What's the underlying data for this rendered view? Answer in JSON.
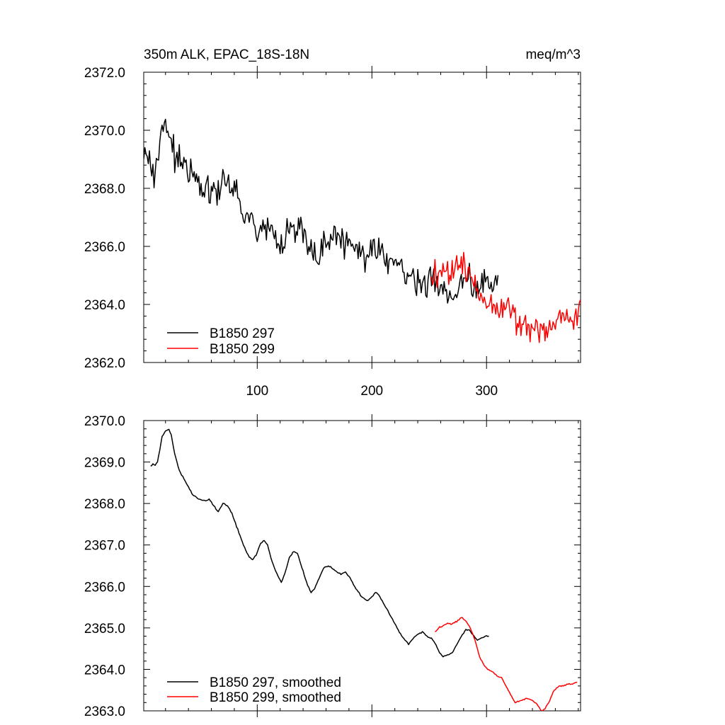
{
  "header": {
    "title": "350m ALK, EPAC_18S-18N",
    "units": "meq/m^3"
  },
  "chart_data": [
    {
      "type": "line",
      "panel": "top",
      "title": "350m ALK, EPAC_18S-18N",
      "units_label": "meq/m^3",
      "xlim": [
        1,
        382
      ],
      "ylim": [
        2362.0,
        2372.0
      ],
      "x_tick_labels": [
        {
          "value": 100,
          "label": "100"
        },
        {
          "value": 200,
          "label": "200"
        },
        {
          "value": 300,
          "label": "300"
        }
      ],
      "y_tick_labels": [
        {
          "value": 2372.0,
          "label": "2372.0"
        },
        {
          "value": 2370.0,
          "label": "2370.0"
        },
        {
          "value": 2368.0,
          "label": "2368.0"
        },
        {
          "value": 2366.0,
          "label": "2366.0"
        },
        {
          "value": 2364.0,
          "label": "2364.0"
        },
        {
          "value": 2362.0,
          "label": "2362.0"
        }
      ],
      "legend": {
        "position": "bottom-left",
        "entries": [
          "B1850 297",
          "B1850 299"
        ]
      },
      "series": [
        {
          "name": "B1850 297",
          "color": "#000000",
          "noise": 0.5,
          "seed": 297,
          "points": [
            [
              1,
              2369.3
            ],
            [
              5,
              2369.1
            ],
            [
              10,
              2368.6
            ],
            [
              14,
              2369.4
            ],
            [
              18,
              2370.2
            ],
            [
              21,
              2369.9
            ],
            [
              26,
              2369.4
            ],
            [
              30,
              2369.0
            ],
            [
              38,
              2368.7
            ],
            [
              45,
              2368.3
            ],
            [
              55,
              2368.1
            ],
            [
              60,
              2368.0
            ],
            [
              66,
              2367.9
            ],
            [
              72,
              2368.2
            ],
            [
              80,
              2367.9
            ],
            [
              88,
              2367.2
            ],
            [
              95,
              2366.9
            ],
            [
              103,
              2366.6
            ],
            [
              112,
              2366.8
            ],
            [
              120,
              2366.0
            ],
            [
              130,
              2366.8
            ],
            [
              140,
              2366.4
            ],
            [
              150,
              2365.6
            ],
            [
              160,
              2366.1
            ],
            [
              170,
              2366.3
            ],
            [
              180,
              2366.1
            ],
            [
              190,
              2365.6
            ],
            [
              200,
              2365.9
            ],
            [
              210,
              2365.6
            ],
            [
              218,
              2365.5
            ],
            [
              228,
              2365.2
            ],
            [
              238,
              2364.6
            ],
            [
              245,
              2364.8
            ],
            [
              253,
              2364.9
            ],
            [
              260,
              2364.4
            ],
            [
              270,
              2364.3
            ],
            [
              278,
              2364.8
            ],
            [
              286,
              2364.9
            ],
            [
              292,
              2364.5
            ],
            [
              300,
              2364.8
            ],
            [
              310,
              2364.8
            ]
          ]
        },
        {
          "name": "B1850 299",
          "color": "#ff0000",
          "noise": 0.5,
          "seed": 299,
          "points": [
            [
              251,
              2364.9
            ],
            [
              258,
              2365.1
            ],
            [
              265,
              2365.1
            ],
            [
              272,
              2365.2
            ],
            [
              278,
              2365.3
            ],
            [
              284,
              2365.0
            ],
            [
              290,
              2364.7
            ],
            [
              296,
              2364.3
            ],
            [
              303,
              2364.0
            ],
            [
              310,
              2363.8
            ],
            [
              318,
              2363.9
            ],
            [
              325,
              2363.6
            ],
            [
              333,
              2363.3
            ],
            [
              340,
              2363.2
            ],
            [
              347,
              2363.2
            ],
            [
              353,
              2363.0
            ],
            [
              359,
              2363.2
            ],
            [
              365,
              2363.6
            ],
            [
              372,
              2363.6
            ],
            [
              378,
              2363.6
            ],
            [
              382,
              2363.7
            ]
          ]
        }
      ]
    },
    {
      "type": "line",
      "panel": "bottom",
      "xlim": [
        1,
        382
      ],
      "ylim": [
        2363.0,
        2370.0
      ],
      "y_tick_labels": [
        {
          "value": 2370.0,
          "label": "2370.0"
        },
        {
          "value": 2369.0,
          "label": "2369.0"
        },
        {
          "value": 2368.0,
          "label": "2368.0"
        },
        {
          "value": 2367.0,
          "label": "2367.0"
        },
        {
          "value": 2366.0,
          "label": "2366.0"
        },
        {
          "value": 2365.0,
          "label": "2365.0"
        },
        {
          "value": 2364.0,
          "label": "2364.0"
        },
        {
          "value": 2363.0,
          "label": "2363.0"
        }
      ],
      "legend": {
        "position": "bottom-left",
        "entries": [
          "B1850 297, smoothed",
          "B1850 299, smoothed"
        ]
      },
      "series": [
        {
          "name": "B1850 297, smoothed",
          "color": "#000000",
          "noise": 0.015,
          "seed": 2970,
          "points": [
            [
              7,
              2368.9
            ],
            [
              9,
              2368.95
            ],
            [
              11,
              2368.93
            ],
            [
              13,
              2369.0
            ],
            [
              15,
              2369.3
            ],
            [
              17,
              2369.6
            ],
            [
              20,
              2369.75
            ],
            [
              23,
              2369.78
            ],
            [
              25,
              2369.65
            ],
            [
              28,
              2369.2
            ],
            [
              32,
              2368.8
            ],
            [
              38,
              2368.5
            ],
            [
              44,
              2368.2
            ],
            [
              50,
              2368.1
            ],
            [
              55,
              2368.05
            ],
            [
              58,
              2368.1
            ],
            [
              62,
              2367.95
            ],
            [
              66,
              2367.8
            ],
            [
              68,
              2367.9
            ],
            [
              70,
              2368.0
            ],
            [
              74,
              2367.95
            ],
            [
              78,
              2367.75
            ],
            [
              84,
              2367.3
            ],
            [
              88,
              2367.0
            ],
            [
              93,
              2366.7
            ],
            [
              96,
              2366.65
            ],
            [
              99,
              2366.75
            ],
            [
              103,
              2367.05
            ],
            [
              106,
              2367.1
            ],
            [
              109,
              2367.0
            ],
            [
              113,
              2366.6
            ],
            [
              118,
              2366.25
            ],
            [
              121,
              2366.1
            ],
            [
              124,
              2366.3
            ],
            [
              128,
              2366.7
            ],
            [
              132,
              2366.85
            ],
            [
              135,
              2366.8
            ],
            [
              139,
              2366.45
            ],
            [
              143,
              2366.1
            ],
            [
              147,
              2365.85
            ],
            [
              150,
              2365.95
            ],
            [
              154,
              2366.2
            ],
            [
              158,
              2366.45
            ],
            [
              162,
              2366.5
            ],
            [
              165,
              2366.45
            ],
            [
              169,
              2366.35
            ],
            [
              173,
              2366.3
            ],
            [
              177,
              2366.35
            ],
            [
              181,
              2366.2
            ],
            [
              186,
              2365.95
            ],
            [
              191,
              2365.75
            ],
            [
              196,
              2365.65
            ],
            [
              200,
              2365.75
            ],
            [
              203,
              2365.85
            ],
            [
              206,
              2365.8
            ],
            [
              210,
              2365.6
            ],
            [
              215,
              2365.35
            ],
            [
              220,
              2365.1
            ],
            [
              225,
              2364.85
            ],
            [
              229,
              2364.7
            ],
            [
              232,
              2364.6
            ],
            [
              236,
              2364.75
            ],
            [
              240,
              2364.85
            ],
            [
              244,
              2364.9
            ],
            [
              248,
              2364.8
            ],
            [
              252,
              2364.75
            ],
            [
              256,
              2364.6
            ],
            [
              259,
              2364.4
            ],
            [
              262,
              2364.3
            ],
            [
              266,
              2364.35
            ],
            [
              270,
              2364.4
            ],
            [
              274,
              2364.6
            ],
            [
              278,
              2364.8
            ],
            [
              282,
              2364.95
            ],
            [
              285,
              2364.95
            ],
            [
              289,
              2364.8
            ],
            [
              292,
              2364.7
            ],
            [
              295,
              2364.75
            ],
            [
              299,
              2364.8
            ],
            [
              302,
              2364.8
            ]
          ]
        },
        {
          "name": "B1850 299, smoothed",
          "color": "#ff0000",
          "noise": 0.015,
          "seed": 2990,
          "points": [
            [
              255,
              2364.9
            ],
            [
              258,
              2365.0
            ],
            [
              262,
              2365.05
            ],
            [
              266,
              2365.1
            ],
            [
              270,
              2365.1
            ],
            [
              274,
              2365.15
            ],
            [
              278,
              2365.25
            ],
            [
              281,
              2365.2
            ],
            [
              285,
              2365.05
            ],
            [
              288,
              2364.85
            ],
            [
              291,
              2364.6
            ],
            [
              294,
              2364.3
            ],
            [
              298,
              2364.1
            ],
            [
              301,
              2364.0
            ],
            [
              305,
              2363.95
            ],
            [
              309,
              2363.85
            ],
            [
              313,
              2363.8
            ],
            [
              317,
              2363.6
            ],
            [
              321,
              2363.4
            ],
            [
              325,
              2363.2
            ],
            [
              330,
              2363.25
            ],
            [
              335,
              2363.3
            ],
            [
              340,
              2363.25
            ],
            [
              344,
              2363.15
            ],
            [
              348,
              2363.0
            ],
            [
              351,
              2363.05
            ],
            [
              355,
              2363.25
            ],
            [
              359,
              2363.5
            ],
            [
              363,
              2363.6
            ],
            [
              367,
              2363.6
            ],
            [
              371,
              2363.65
            ],
            [
              375,
              2363.65
            ],
            [
              379,
              2363.7
            ]
          ]
        }
      ]
    }
  ]
}
